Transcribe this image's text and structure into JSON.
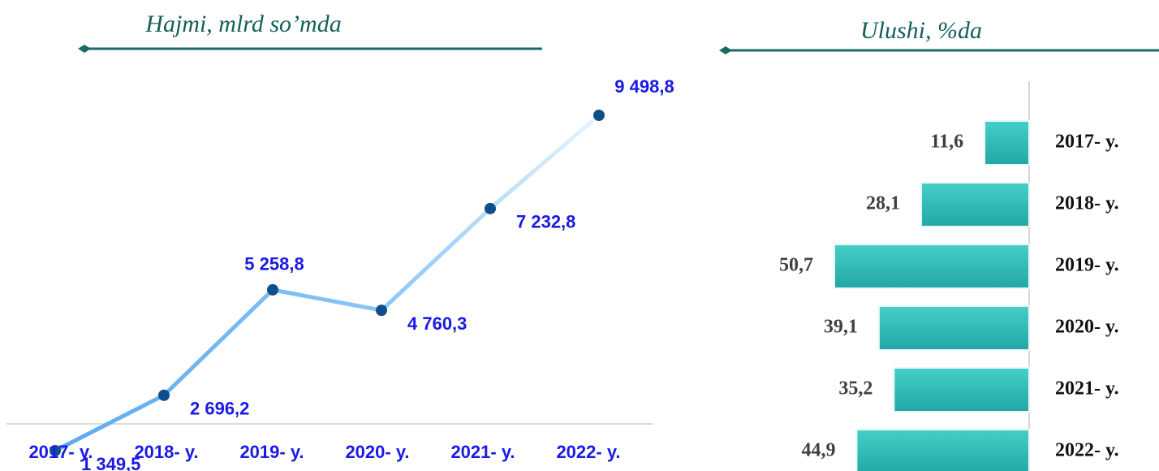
{
  "chart_data": [
    {
      "type": "line",
      "title": "Hajmi, mlrd so’mda",
      "categories": [
        "2017- y.",
        "2018- y.",
        "2019- y.",
        "2020- y.",
        "2021- y.",
        "2022- y."
      ],
      "values": [
        1349.5,
        2696.2,
        5258.8,
        4760.3,
        7232.8,
        9498.8
      ],
      "value_labels": [
        "1 349,5",
        "2 696,2",
        "5 258,8",
        "4 760,3",
        "7 232,8",
        "9 498,8"
      ],
      "color": "#5aaaf0"
    },
    {
      "type": "barh",
      "title": "Ulushi, %da",
      "categories": [
        "2017- y.",
        "2018- y.",
        "2019- y.",
        "2020- y.",
        "2021- y.",
        "2022- y."
      ],
      "values": [
        11.6,
        28.1,
        50.7,
        39.1,
        35.2,
        44.9
      ],
      "value_labels": [
        "11,6",
        "28,1",
        "50,7",
        "39,1",
        "35,2",
        "44,9"
      ],
      "color": "#33bdb8"
    }
  ]
}
